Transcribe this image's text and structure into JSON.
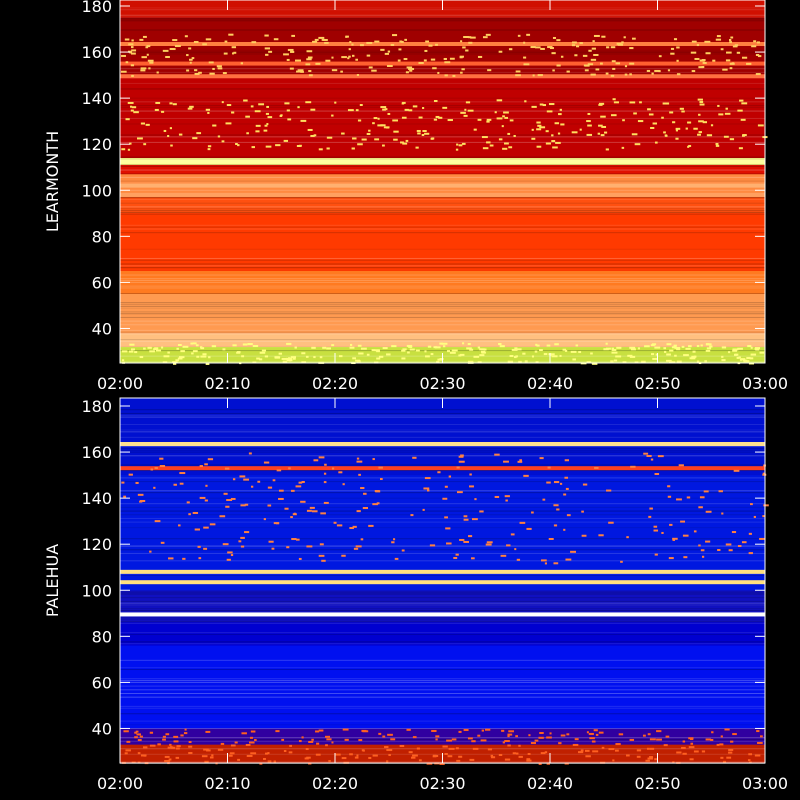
{
  "chart_data": [
    {
      "type": "heatmap",
      "ylabel": "LEARMONTH",
      "x_ticks": [
        "02:00",
        "02:10",
        "02:20",
        "02:30",
        "02:40",
        "02:50",
        "03:00"
      ],
      "y_ticks": [
        40,
        60,
        80,
        100,
        120,
        140,
        160,
        180
      ],
      "xlim": [
        "02:00",
        "03:00"
      ],
      "ylim": [
        25,
        180
      ],
      "colormap": "red-temperature",
      "colors": {
        "low": "#7a0000",
        "mid": "#ff2a00",
        "high": "#ffff80"
      },
      "bands": [
        {
          "from": 25,
          "to": 32,
          "color": "#c8e040"
        },
        {
          "from": 32,
          "to": 38,
          "color": "#ffc080"
        },
        {
          "from": 38,
          "to": 55,
          "color": "#ff9a50"
        },
        {
          "from": 55,
          "to": 65,
          "color": "#ff7a20"
        },
        {
          "from": 65,
          "to": 90,
          "color": "#ff3a00"
        },
        {
          "from": 90,
          "to": 97,
          "color": "#ff5010"
        },
        {
          "from": 97,
          "to": 107,
          "color": "#ff8a40"
        },
        {
          "from": 107,
          "to": 111,
          "color": "#e01000"
        },
        {
          "from": 111,
          "to": 114,
          "color": "#ffff90"
        },
        {
          "from": 114,
          "to": 150,
          "color": "#c00000"
        },
        {
          "from": 150,
          "to": 175,
          "color": "#a00000"
        },
        {
          "from": 175,
          "to": 180,
          "color": "#d01000"
        }
      ],
      "lines": [
        {
          "f": 112.5,
          "color": "#ffffa0"
        },
        {
          "f": 149.5,
          "color": "#ff7040"
        },
        {
          "f": 155,
          "color": "#ff6030"
        },
        {
          "f": 163.5,
          "color": "#ff8040"
        },
        {
          "f": 102,
          "color": "#ffb070"
        },
        {
          "f": 98,
          "color": "#ffa060"
        }
      ]
    },
    {
      "type": "heatmap",
      "ylabel": "PALEHUA",
      "x_ticks": [
        "02:00",
        "02:10",
        "02:20",
        "02:30",
        "02:40",
        "02:50",
        "03:00"
      ],
      "y_ticks": [
        40,
        60,
        80,
        100,
        120,
        140,
        160,
        180
      ],
      "xlim": [
        "02:00",
        "03:00"
      ],
      "ylim": [
        25,
        180
      ],
      "colormap": "blue-hot",
      "colors": {
        "low": "#00008a",
        "mid": "#0000ff",
        "high": "#ffffff"
      },
      "bands": [
        {
          "from": 25,
          "to": 33,
          "color": "#c02000"
        },
        {
          "from": 33,
          "to": 40,
          "color": "#3000a0"
        },
        {
          "from": 40,
          "to": 76,
          "color": "#0010f0"
        },
        {
          "from": 76,
          "to": 86,
          "color": "#0000d0"
        },
        {
          "from": 86,
          "to": 100,
          "color": "#1010c0"
        },
        {
          "from": 100,
          "to": 150,
          "color": "#0018e0"
        },
        {
          "from": 150,
          "to": 180,
          "color": "#0010d0"
        }
      ],
      "lines": [
        {
          "f": 89.5,
          "color": "#ffffff"
        },
        {
          "f": 103.5,
          "color": "#ffe080"
        },
        {
          "f": 108,
          "color": "#ffe080"
        },
        {
          "f": 153,
          "color": "#ff4020"
        },
        {
          "f": 163.5,
          "color": "#ffe090"
        }
      ]
    }
  ]
}
